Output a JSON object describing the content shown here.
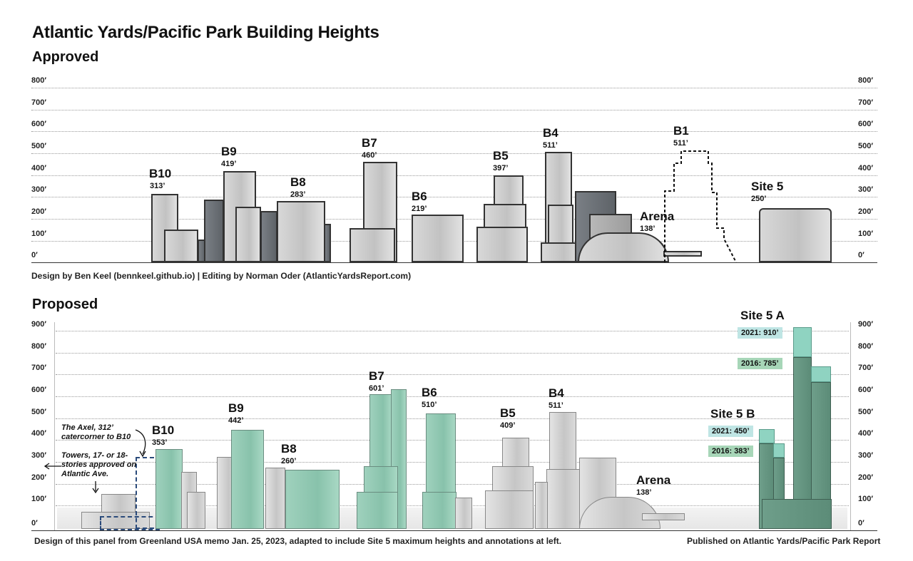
{
  "title": "Atlantic Yards/Pacific Park Building Heights",
  "approved": {
    "heading": "Approved",
    "y_ticks": [
      "800′",
      "700′",
      "600′",
      "500′",
      "400′",
      "300′",
      "200′",
      "100′",
      "0′"
    ],
    "credit": "Design by Ben Keel (bennkeel.github.io) | Editing by Norman Oder (AtlanticYardsReport.com)",
    "buildings": [
      {
        "name": "B10",
        "height": "313’"
      },
      {
        "name": "B9",
        "height": "419’"
      },
      {
        "name": "B8",
        "height": "283’"
      },
      {
        "name": "B7",
        "height": "460’"
      },
      {
        "name": "B6",
        "height": "219’"
      },
      {
        "name": "B5",
        "height": "397’"
      },
      {
        "name": "B4",
        "height": "511’"
      },
      {
        "name": "B1",
        "height": "511’"
      },
      {
        "name": "Arena",
        "height": "138’"
      },
      {
        "name": "Site 5",
        "height": "250’"
      }
    ]
  },
  "proposed": {
    "heading": "Proposed",
    "y_ticks": [
      "900′",
      "800′",
      "700′",
      "600′",
      "500′",
      "400′",
      "300′",
      "200′",
      "100′",
      "0′"
    ],
    "buildings": [
      {
        "name": "B10",
        "height": "353’"
      },
      {
        "name": "B9",
        "height": "442’"
      },
      {
        "name": "B8",
        "height": "260’"
      },
      {
        "name": "B7",
        "height": "601’"
      },
      {
        "name": "B6",
        "height": "510’"
      },
      {
        "name": "B5",
        "height": "409’"
      },
      {
        "name": "B4",
        "height": "511’"
      },
      {
        "name": "Arena",
        "height": "138’"
      }
    ],
    "site5a": {
      "name": "Site 5 A",
      "tag_2021": "2021: 910’",
      "tag_2016": "2016: 785’"
    },
    "site5b": {
      "name": "Site 5 B",
      "tag_2021": "2021: 450’",
      "tag_2016": "2016: 383’"
    },
    "annotations": {
      "axel": "The Axel, 312’ catercorner to B10",
      "towers": "Towers, 17- or 18-stories approved on Atlantic Ave."
    },
    "credit_left": "Design of this panel from Greenland USA memo Jan. 25, 2023, adapted to include Site 5 maximum heights and annotations at left.",
    "credit_right": "Published on Atlantic Yards/Pacific Park Report"
  },
  "colors": {
    "proposed_green": "#88c2ab",
    "site5_green": "#5c8c78",
    "tag_2021": "#bfe5e4",
    "tag_2016": "#a7d6b8"
  }
}
